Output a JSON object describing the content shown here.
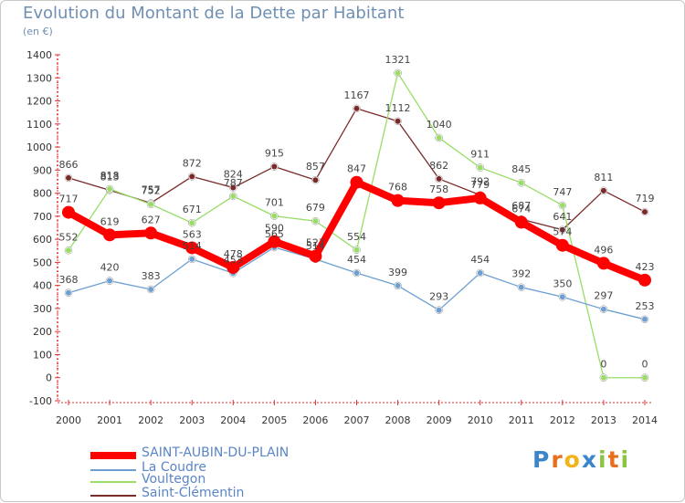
{
  "title": "Evolution du Montant de la Dette par Habitant",
  "subtitle": "(en €)",
  "logo": {
    "letters": [
      "P",
      "r",
      "o",
      "x",
      "i",
      "t",
      "i"
    ],
    "colors": [
      "#3b86c8",
      "#e76f1e",
      "#f2b318",
      "#3b86c8",
      "#8bc43f",
      "#e76f1e",
      "#8bc43f"
    ]
  },
  "chart_data": {
    "type": "line",
    "x": [
      "2000",
      "2001",
      "2002",
      "2003",
      "2004",
      "2005",
      "2006",
      "2007",
      "2008",
      "2009",
      "2010",
      "2011",
      "2012",
      "2013",
      "2014"
    ],
    "ylim": [
      -100,
      1400
    ],
    "yticks": [
      "-100",
      "0",
      "100",
      "200",
      "300",
      "400",
      "500",
      "600",
      "700",
      "800",
      "900",
      "1000",
      "1100",
      "1200",
      "1300",
      "1400"
    ],
    "grid": false,
    "legend_position": "bottom-left",
    "series": [
      {
        "name": "SAINT-AUBIN-DU-PLAIN",
        "color": "#ff0000",
        "values": [
          717,
          619,
          627,
          563,
          478,
          590,
          527,
          847,
          768,
          758,
          779,
          674,
          574,
          496,
          423
        ],
        "labels": [
          "717",
          "619",
          "627",
          "563",
          "478",
          "590",
          "527",
          "847",
          "768",
          "758",
          "779",
          "674",
          "574",
          "496",
          "423"
        ]
      },
      {
        "name": "La Coudre",
        "color": "#6d9fd2",
        "values": [
          368,
          420,
          383,
          514,
          453,
          565,
          514,
          454,
          399,
          293,
          454,
          392,
          350,
          297,
          253
        ],
        "labels": [
          "368",
          "420",
          "383",
          "514",
          "453",
          "565",
          "514",
          "454",
          "399",
          "293",
          "454",
          "392",
          "350",
          "297",
          "253"
        ]
      },
      {
        "name": "Voultegon",
        "color": "#99dd66",
        "values": [
          552,
          818,
          752,
          671,
          787,
          701,
          679,
          554,
          1321,
          1040,
          911,
          845,
          747,
          0,
          0
        ],
        "labels": [
          "552",
          "818",
          "752",
          "671",
          "787",
          "701",
          "679",
          "554",
          "1321",
          "1040",
          "911",
          "845",
          "747",
          "0",
          "0"
        ]
      },
      {
        "name": "Saint-Clémentin",
        "color": "#7b2a2a",
        "values": [
          866,
          813,
          757,
          872,
          824,
          915,
          857,
          1167,
          1112,
          862,
          792,
          687,
          641,
          811,
          719
        ],
        "labels": [
          "866",
          "813",
          "757",
          "872",
          "824",
          "915",
          "857",
          "1167",
          "1112",
          "862",
          "792",
          "687",
          "641",
          "811",
          "719"
        ]
      }
    ]
  }
}
